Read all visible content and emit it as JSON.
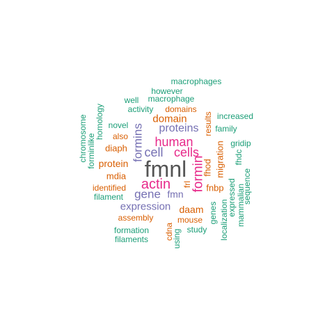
{
  "colors": {
    "green": "#1b9e77",
    "orange": "#d95f02",
    "purple": "#7570b3",
    "magenta": "#e7298a",
    "gray": "#555555"
  },
  "words": [
    {
      "text": "fmnl",
      "color": "gray"
    },
    {
      "text": "actin",
      "color": "magenta"
    },
    {
      "text": "human",
      "color": "magenta"
    },
    {
      "text": "cells",
      "color": "magenta"
    },
    {
      "text": "formin",
      "color": "magenta"
    },
    {
      "text": "cell",
      "color": "purple"
    },
    {
      "text": "formins",
      "color": "purple"
    },
    {
      "text": "gene",
      "color": "purple"
    },
    {
      "text": "proteins",
      "color": "purple"
    },
    {
      "text": "expression",
      "color": "purple"
    },
    {
      "text": "fmn",
      "color": "purple"
    },
    {
      "text": "domain",
      "color": "orange"
    },
    {
      "text": "protein",
      "color": "orange"
    },
    {
      "text": "diaph",
      "color": "orange"
    },
    {
      "text": "mdia",
      "color": "orange"
    },
    {
      "text": "daam",
      "color": "orange"
    },
    {
      "text": "fhod",
      "color": "orange"
    },
    {
      "text": "migration",
      "color": "orange"
    },
    {
      "text": "results",
      "color": "orange"
    },
    {
      "text": "frl",
      "color": "orange"
    },
    {
      "text": "fnbp",
      "color": "orange"
    },
    {
      "text": "domains",
      "color": "orange"
    },
    {
      "text": "also",
      "color": "orange"
    },
    {
      "text": "identified",
      "color": "orange"
    },
    {
      "text": "assembly",
      "color": "orange"
    },
    {
      "text": "mouse",
      "color": "orange"
    },
    {
      "text": "cdna",
      "color": "orange"
    },
    {
      "text": "macrophages",
      "color": "green"
    },
    {
      "text": "however",
      "color": "green"
    },
    {
      "text": "macrophage",
      "color": "green"
    },
    {
      "text": "well",
      "color": "green"
    },
    {
      "text": "activity",
      "color": "green"
    },
    {
      "text": "increased",
      "color": "green"
    },
    {
      "text": "family",
      "color": "green"
    },
    {
      "text": "novel",
      "color": "green"
    },
    {
      "text": "homology",
      "color": "green"
    },
    {
      "text": "chromosome",
      "color": "green"
    },
    {
      "text": "forminlike",
      "color": "green"
    },
    {
      "text": "filament",
      "color": "green"
    },
    {
      "text": "formation",
      "color": "green"
    },
    {
      "text": "filaments",
      "color": "green"
    },
    {
      "text": "using",
      "color": "green"
    },
    {
      "text": "study",
      "color": "green"
    },
    {
      "text": "genes",
      "color": "green"
    },
    {
      "text": "localization",
      "color": "green"
    },
    {
      "text": "expressed",
      "color": "green"
    },
    {
      "text": "mammalian",
      "color": "green"
    },
    {
      "text": "sequence",
      "color": "green"
    },
    {
      "text": "fhdc",
      "color": "green"
    },
    {
      "text": "gridip",
      "color": "green"
    }
  ]
}
